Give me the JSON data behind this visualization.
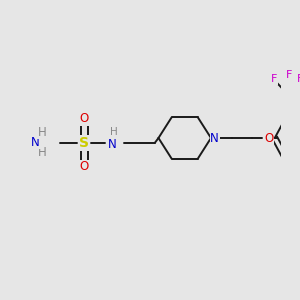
{
  "background_color": "#e6e6e6",
  "figsize": [
    3.0,
    3.0
  ],
  "dpi": 100,
  "bond_color": "#1a1a1a",
  "bond_lw": 1.4,
  "fs": 8.5,
  "colors": {
    "C": "#1a1a1a",
    "N": "#0000cc",
    "O": "#dd0000",
    "S": "#cccc00",
    "F": "#cc00cc",
    "H": "#888888"
  }
}
